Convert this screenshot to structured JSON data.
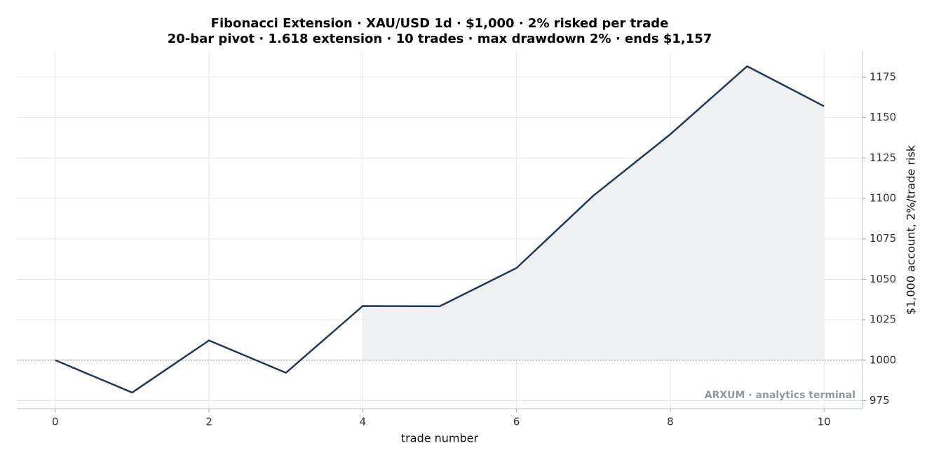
{
  "chart_data": {
    "type": "line",
    "title": "Fibonacci Extension · XAU/USD 1d · $1,000 · 2% risked per trade",
    "subtitle": "20-bar pivot · 1.618 extension · 10 trades · max drawdown 2% · ends $1,157",
    "x_label": "trade number",
    "y_label": "$1,000 account, 2%/trade risk",
    "watermark": "ARXUM · analytics terminal",
    "x": [
      0,
      1,
      2,
      3,
      4,
      5,
      6,
      7,
      8,
      9,
      10
    ],
    "series": [
      {
        "color": "#1f3a5a",
        "values": [
          1000,
          980,
          1012.2,
          992.2,
          1033.5,
          1033.3,
          1057,
          1101.7,
          1139.6,
          1181.7,
          1157
        ]
      }
    ],
    "baseline": 1000,
    "shade_from": 4,
    "shade_color": "#eef0f1",
    "xlim": [
      -0.5,
      10.5
    ],
    "xticks": [
      0,
      2,
      4,
      6,
      8,
      10
    ],
    "ylim": [
      970,
      1191
    ],
    "yticks": [
      975,
      1000,
      1025,
      1050,
      1075,
      1100,
      1125,
      1150,
      1175
    ],
    "y_axis_side": "right",
    "grid": true
  }
}
